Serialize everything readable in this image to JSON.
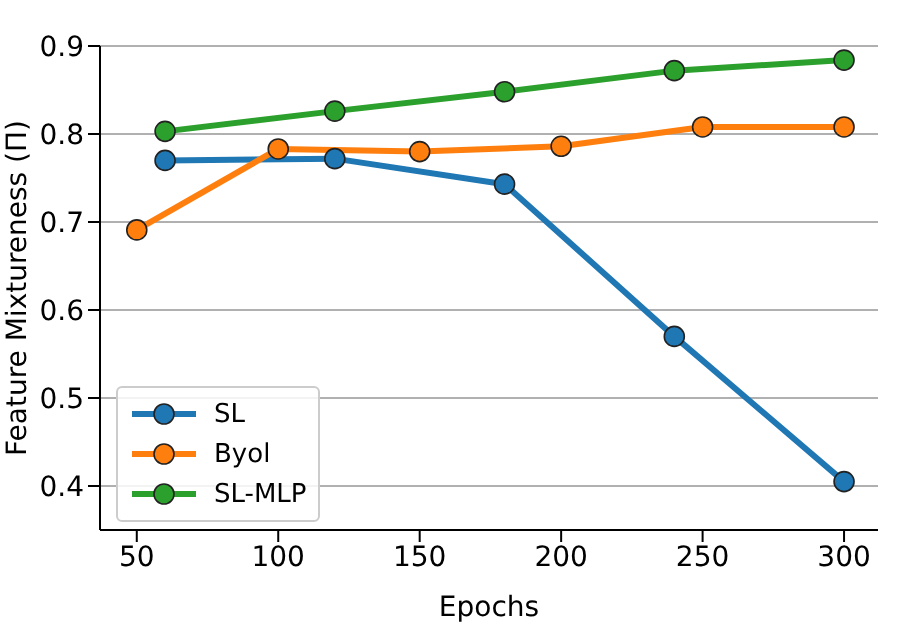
{
  "chart_data": {
    "type": "line",
    "xlabel": "Epochs",
    "ylabel": "Feature Mixtureness (Π)",
    "xlim": [
      37,
      312
    ],
    "xticks": [
      50,
      100,
      150,
      200,
      250,
      300
    ],
    "ylim": [
      0.35,
      0.9
    ],
    "yticks": [
      0.4,
      0.5,
      0.6,
      0.7,
      0.8,
      0.9
    ],
    "grid": "y",
    "legend": "bottom left",
    "marker": "circle",
    "line_style": "solid",
    "series": [
      {
        "name": "SL",
        "color": "#1f77b4",
        "x": [
          60,
          120,
          180,
          240,
          300
        ],
        "values": [
          0.77,
          0.772,
          0.743,
          0.57,
          0.405
        ]
      },
      {
        "name": "Byol",
        "color": "#ff7f0e",
        "x": [
          50,
          100,
          150,
          200,
          250,
          300
        ],
        "values": [
          0.691,
          0.783,
          0.78,
          0.786,
          0.808,
          0.808
        ]
      },
      {
        "name": "SL-MLP",
        "color": "#2ca02c",
        "x": [
          60,
          120,
          180,
          240,
          300
        ],
        "values": [
          0.803,
          0.826,
          0.848,
          0.872,
          0.884
        ]
      }
    ]
  }
}
